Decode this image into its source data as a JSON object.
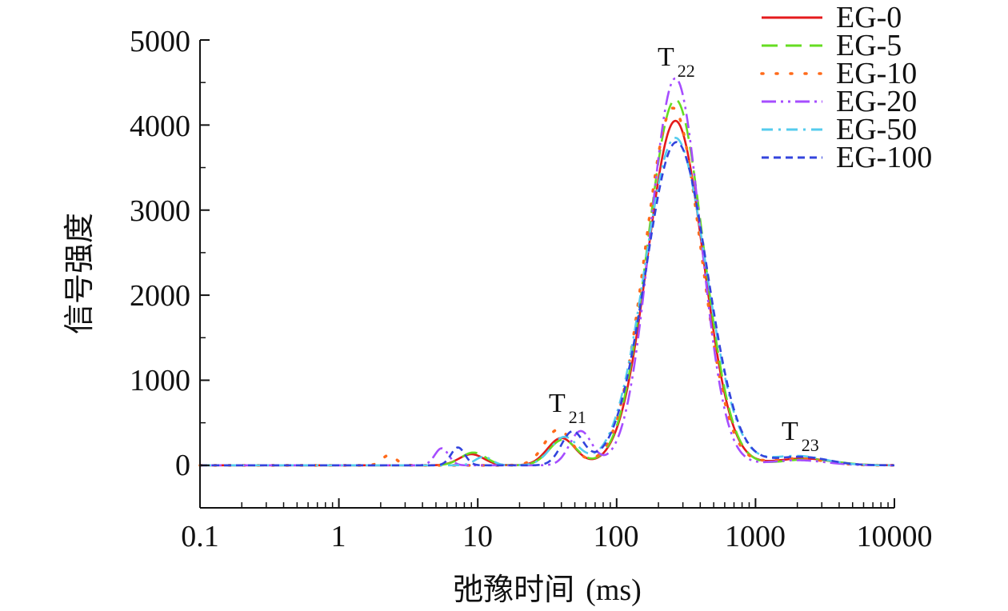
{
  "chart_data": {
    "type": "line",
    "xscale": "log",
    "xlim": [
      0.1,
      10000
    ],
    "ylim": [
      -500,
      5000
    ],
    "xlabel": "弛豫时间",
    "xlabel_unit": "(ms)",
    "ylabel": "信号强度",
    "x_ticks": [
      "0.1",
      "1",
      "10",
      "100",
      "1000",
      "10000"
    ],
    "y_ticks": [
      "0",
      "1000",
      "2000",
      "3000",
      "4000",
      "5000"
    ],
    "legend_position": "top-right",
    "annotations": [
      {
        "main": "T",
        "sub": "21",
        "x": 42,
        "y": 580
      },
      {
        "main": "T",
        "sub": "22",
        "x": 262,
        "y": 4760
      },
      {
        "main": "T",
        "sub": "23",
        "x": 2150,
        "y": 260
      }
    ],
    "series": [
      {
        "name": "EG-0",
        "color": "#e41a1c",
        "dash": "solid",
        "peaks": [
          {
            "center": 9,
            "amp": 130,
            "width": 0.09
          },
          {
            "center": 40,
            "amp": 320,
            "width": 0.1
          },
          {
            "center": 265,
            "amp": 4050,
            "width": 0.2
          },
          {
            "center": 2200,
            "amp": 80,
            "width": 0.2
          }
        ]
      },
      {
        "name": "EG-5",
        "color": "#66dd22",
        "dash": "dash",
        "peaks": [
          {
            "center": 9.3,
            "amp": 150,
            "width": 0.09
          },
          {
            "center": 41,
            "amp": 300,
            "width": 0.1
          },
          {
            "center": 265,
            "amp": 4300,
            "width": 0.2
          },
          {
            "center": 2400,
            "amp": 70,
            "width": 0.2
          }
        ]
      },
      {
        "name": "EG-10",
        "color": "#ff6a1a",
        "dash": "dot",
        "peaks": [
          {
            "center": 2.3,
            "amp": 120,
            "width": 0.05
          },
          {
            "center": 38,
            "amp": 420,
            "width": 0.1
          },
          {
            "center": 255,
            "amp": 4200,
            "width": 0.2
          },
          {
            "center": 2000,
            "amp": 80,
            "width": 0.2
          }
        ]
      },
      {
        "name": "EG-20",
        "color": "#a64dff",
        "dash": "dashdotdot",
        "peaks": [
          {
            "center": 5.5,
            "amp": 200,
            "width": 0.05
          },
          {
            "center": 55,
            "amp": 400,
            "width": 0.08
          },
          {
            "center": 265,
            "amp": 4550,
            "width": 0.18
          },
          {
            "center": 2000,
            "amp": 60,
            "width": 0.2
          }
        ]
      },
      {
        "name": "EG-50",
        "color": "#55ccee",
        "dash": "dashdot",
        "peaks": [
          {
            "center": 11,
            "amp": 100,
            "width": 0.06
          },
          {
            "center": 42,
            "amp": 330,
            "width": 0.1
          },
          {
            "center": 265,
            "amp": 3850,
            "width": 0.22
          },
          {
            "center": 2000,
            "amp": 110,
            "width": 0.2
          }
        ]
      },
      {
        "name": "EG-100",
        "color": "#3344dd",
        "dash": "shortdash",
        "peaks": [
          {
            "center": 7.2,
            "amp": 210,
            "width": 0.05
          },
          {
            "center": 48,
            "amp": 390,
            "width": 0.08
          },
          {
            "center": 270,
            "amp": 3800,
            "width": 0.22
          },
          {
            "center": 2100,
            "amp": 100,
            "width": 0.2
          }
        ]
      }
    ]
  }
}
